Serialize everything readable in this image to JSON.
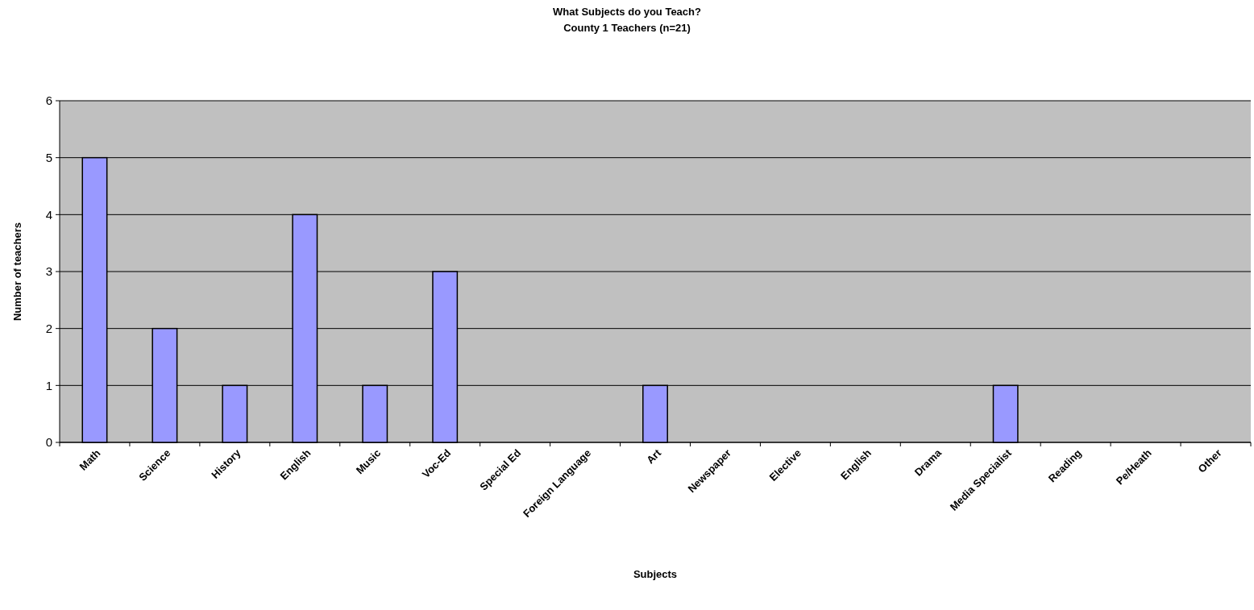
{
  "chart_data": {
    "type": "bar",
    "title": "What Subjects do you Teach?",
    "subtitle": "County 1 Teachers (n=21)",
    "xlabel": "Subjects",
    "ylabel": "Number of teachers",
    "categories": [
      "Math",
      "Science",
      "History",
      "English",
      "Music",
      "Voc-Ed",
      "Special Ed",
      "Foreign Language",
      "Art",
      "Newspaper",
      "Elective",
      "English",
      "Drama",
      "Media Specialist",
      "Reading",
      "Pe/Heath",
      "Other"
    ],
    "values": [
      5,
      2,
      1,
      4,
      1,
      3,
      0,
      0,
      1,
      0,
      0,
      0,
      0,
      1,
      0,
      0,
      0
    ],
    "color": "#9999ff",
    "ylim": [
      0,
      6
    ],
    "yticks": [
      0,
      1,
      2,
      3,
      4,
      5,
      6
    ],
    "grid": "y"
  }
}
